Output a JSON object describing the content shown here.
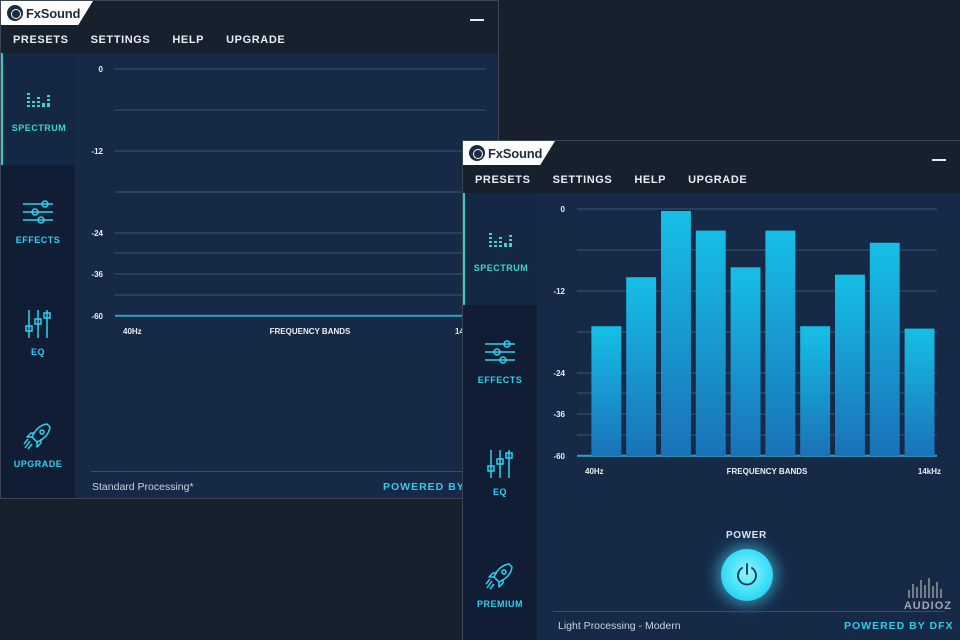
{
  "app": {
    "name": "FxSound"
  },
  "menu": [
    "PRESETS",
    "SETTINGS",
    "HELP",
    "UPGRADE"
  ],
  "window1": {
    "sidebar": [
      {
        "label": "SPECTRUM",
        "icon": "spectrum-icon"
      },
      {
        "label": "EFFECTS",
        "icon": "sliders-icon"
      },
      {
        "label": "EQ",
        "icon": "eq-icon"
      },
      {
        "label": "UPGRADE",
        "icon": "rocket-icon"
      }
    ],
    "footer": {
      "preset": "Standard Processing*",
      "powered": "POWERED BY"
    }
  },
  "window2": {
    "sidebar": [
      {
        "label": "SPECTRUM",
        "icon": "spectrum-icon"
      },
      {
        "label": "EFFECTS",
        "icon": "sliders-icon"
      },
      {
        "label": "EQ",
        "icon": "eq-icon"
      },
      {
        "label": "PREMIUM",
        "icon": "rocket-icon"
      }
    ],
    "power_label": "POWER",
    "footer": {
      "preset": "Light Processing - Modern",
      "powered": "POWERED BY DFX"
    }
  },
  "chart_data": [
    {
      "type": "bar",
      "y_ticks": [
        "0",
        "-12",
        "-24",
        "-36",
        "-60"
      ],
      "x_start": "40Hz",
      "x_mid": "FREQUENCY BANDS",
      "x_end": "14",
      "values": []
    },
    {
      "type": "bar",
      "y_ticks": [
        "0",
        "-12",
        "-24",
        "-36",
        "-60"
      ],
      "x_start": "40Hz",
      "x_mid": "FREQUENCY BANDS",
      "x_end": "14kHz",
      "values": [
        0.53,
        0.73,
        1.0,
        0.92,
        0.77,
        0.92,
        0.53,
        0.74,
        0.87,
        0.52
      ]
    }
  ],
  "watermark": "AUDIOZ",
  "colors": {
    "accent": "#2fd1ee",
    "active_tab": "#3fd6c7",
    "background": "#162a48",
    "sidebar": "#101d34",
    "titlebar": "#17202d"
  }
}
